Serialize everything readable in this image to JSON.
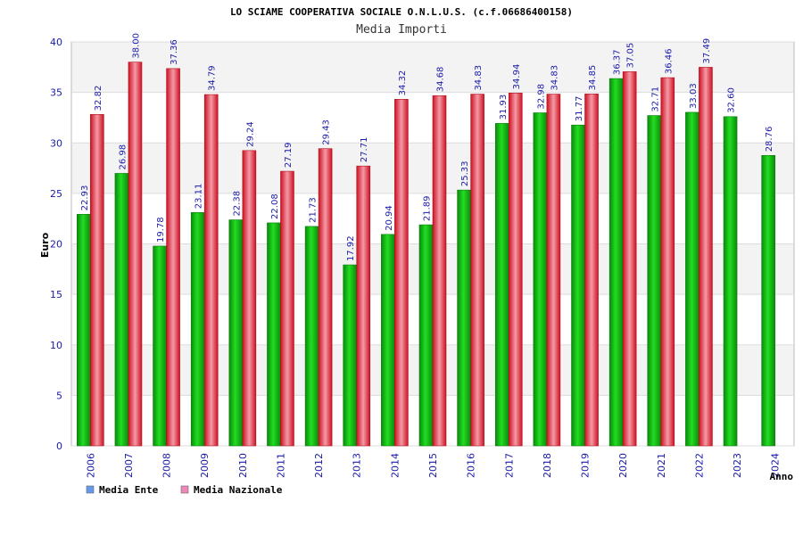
{
  "chart_data": {
    "type": "bar",
    "title": "LO SCIAME COOPERATIVA SOCIALE O.N.L.U.S. (c.f.06686400158)",
    "subtitle": "Media Importi",
    "xlabel": "Anno",
    "ylabel": "Euro",
    "ylim": [
      0,
      40
    ],
    "yticks": [
      "0",
      "5",
      "10",
      "15",
      "20",
      "25",
      "30",
      "35",
      "40"
    ],
    "grid": true,
    "legend_position": "bottom-left",
    "categories": [
      "2006",
      "2007",
      "2008",
      "2009",
      "2010",
      "2011",
      "2012",
      "2013",
      "2014",
      "2015",
      "2016",
      "2017",
      "2018",
      "2019",
      "2020",
      "2021",
      "2022",
      "2023",
      "2024"
    ],
    "series": [
      {
        "name": "Media Ente",
        "color": "#11bb11",
        "legend_color": "#6699ee",
        "values": [
          22.93,
          26.98,
          19.78,
          23.11,
          22.38,
          22.08,
          21.73,
          17.92,
          20.94,
          21.89,
          25.33,
          31.93,
          32.98,
          31.77,
          36.37,
          32.71,
          33.03,
          32.6,
          28.76
        ],
        "labels": [
          "22.93",
          "26.98",
          "19.78",
          "23.11",
          "22.38",
          "22.08",
          "21.73",
          "17.92",
          "20.94",
          "21.89",
          "25.33",
          "31.93",
          "32.98",
          "31.77",
          "36.37",
          "32.71",
          "33.03",
          "32.60",
          "28.76"
        ]
      },
      {
        "name": "Media Nazionale",
        "color": "#ee2233",
        "legend_color": "#ee88bb",
        "values": [
          32.82,
          38.0,
          37.36,
          34.79,
          29.24,
          27.19,
          29.43,
          27.71,
          34.32,
          34.68,
          34.83,
          34.94,
          34.83,
          34.85,
          37.05,
          36.46,
          37.49,
          null,
          null
        ],
        "labels": [
          "32.82",
          "38.00",
          "37.36",
          "34.79",
          "29.24",
          "27.19",
          "29.43",
          "27.71",
          "34.32",
          "34.68",
          "34.83",
          "34.94",
          "34.83",
          "34.85",
          "37.05",
          "36.46",
          "37.49",
          null,
          null
        ]
      }
    ]
  }
}
